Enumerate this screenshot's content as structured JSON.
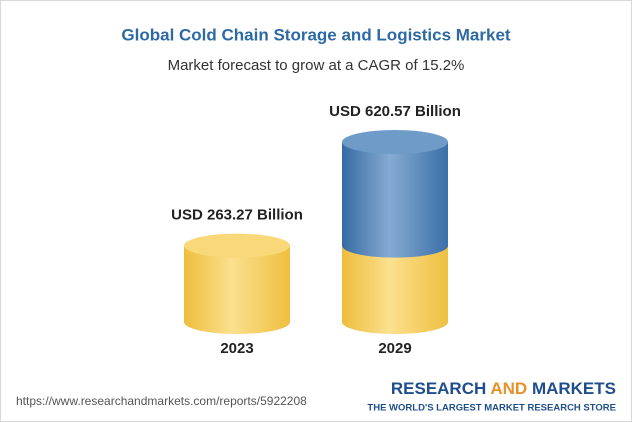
{
  "chart_data": {
    "type": "cylinder",
    "title": "Global Cold Chain Storage and Logistics Market",
    "subtitle": "Market forecast to grow at a CAGR of 15.2%",
    "categories": [
      "2023",
      "2029"
    ],
    "values": [
      263.27,
      620.57
    ],
    "value_labels": [
      "USD 263.27 Billion",
      "USD 620.57 Billion"
    ],
    "colors": [
      "#f2c649",
      "#3f77b0"
    ]
  },
  "footer": {
    "url": "https://www.researchandmarkets.com/reports/5922208",
    "brand": [
      "RESEARCH",
      "AND",
      "MARKETS"
    ],
    "tagline": "THE WORLD'S LARGEST MARKET RESEARCH STORE"
  }
}
